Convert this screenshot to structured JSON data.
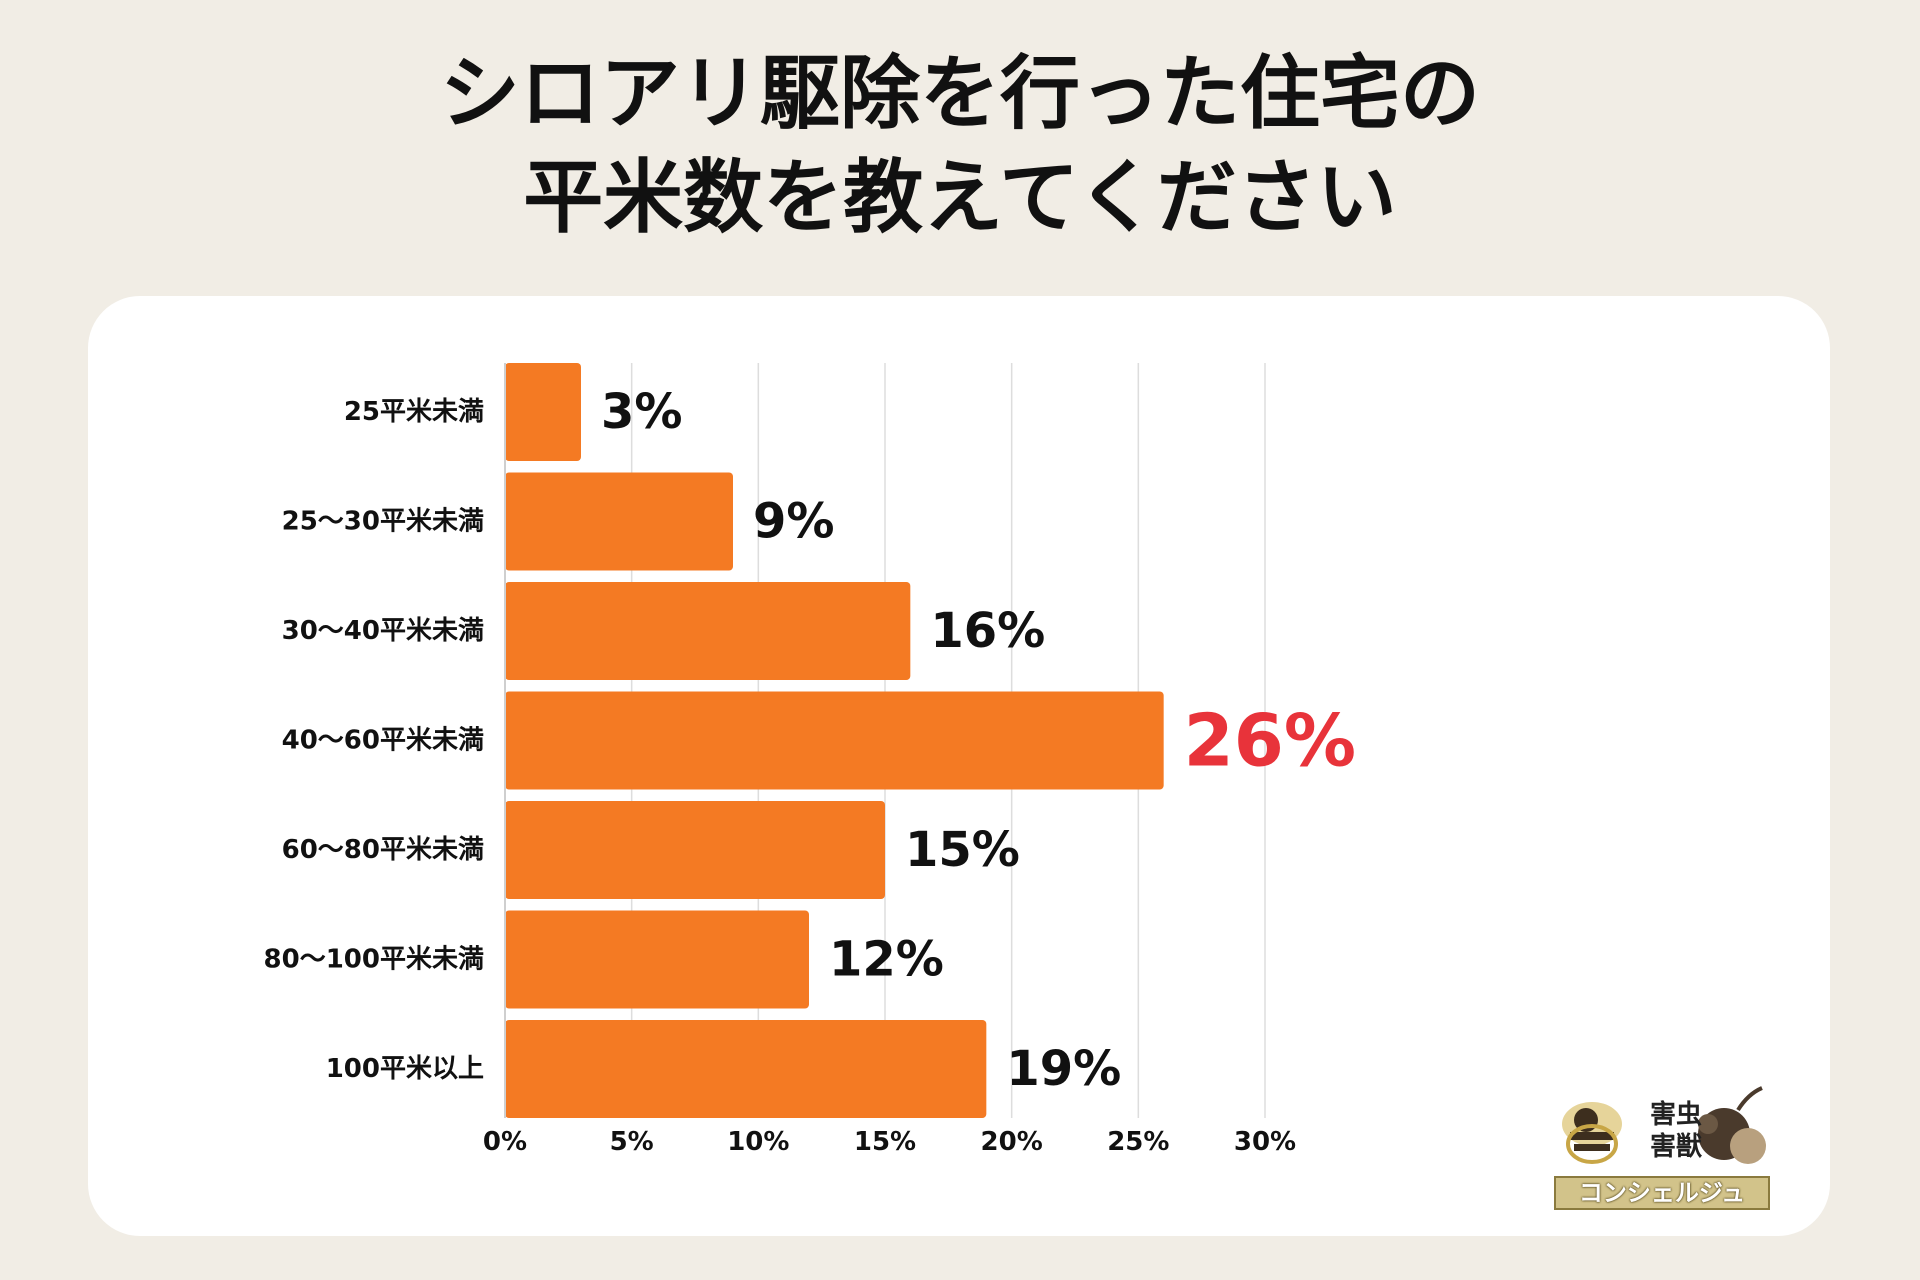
{
  "title": {
    "line1": "シロアリ駆除を行った住宅の",
    "line2": "平米数を教えてください"
  },
  "chart_data": {
    "type": "bar",
    "orientation": "horizontal",
    "categories": [
      "25平米未満",
      "25〜30平米未満",
      "30〜40平米未満",
      "40〜60平米未満",
      "60〜80平米未満",
      "80〜100平米未満",
      "100平米以上"
    ],
    "values": [
      3,
      9,
      16,
      26,
      15,
      12,
      19
    ],
    "value_labels": [
      "3%",
      "9%",
      "16%",
      "26%",
      "15%",
      "12%",
      "19%"
    ],
    "highlight_index": 3,
    "xlim": [
      0,
      30
    ],
    "xticks": [
      0,
      5,
      10,
      15,
      20,
      25,
      30
    ],
    "xtick_labels": [
      "0%",
      "5%",
      "10%",
      "15%",
      "20%",
      "25%",
      "30%"
    ],
    "grid": true,
    "colors": {
      "bar": "#f47a23",
      "label": "#111111",
      "highlight_label": "#e8333a",
      "grid": "#dddddd"
    }
  },
  "logo": {
    "line1": "害虫",
    "line2": "害獣",
    "band": "コンシェルジュ"
  }
}
